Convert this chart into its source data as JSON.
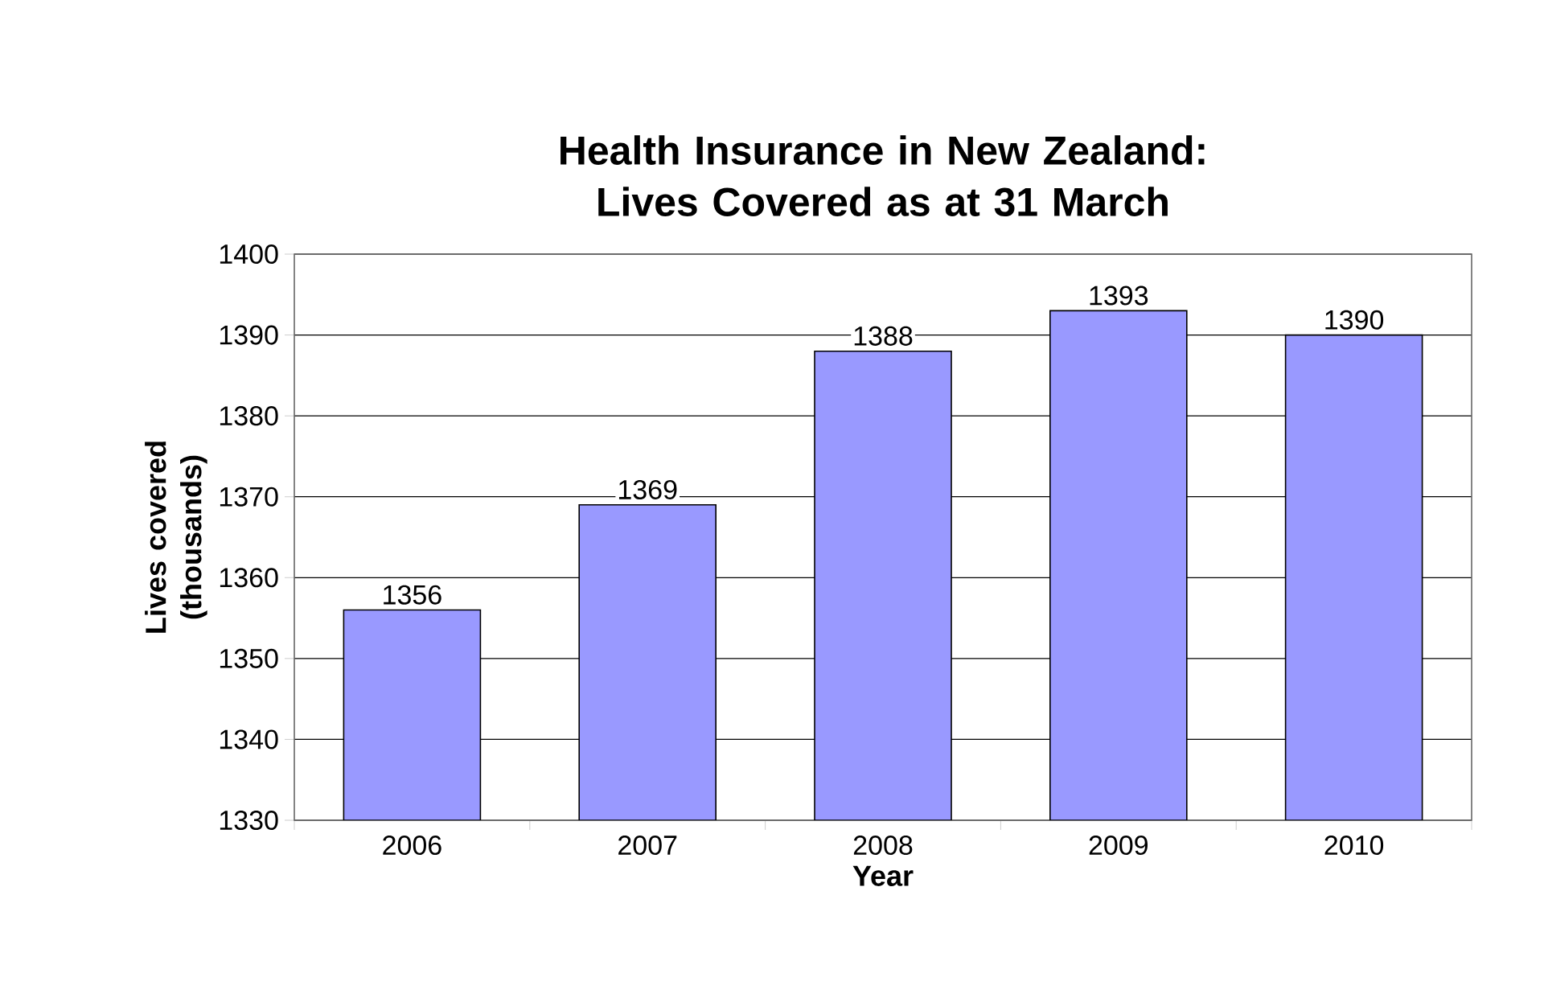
{
  "chart_data": {
    "type": "bar",
    "title": "Health Insurance in New Zealand: Lives Covered as at 31 March",
    "xlabel": "Year",
    "ylabel": "Lives covered (thousands)",
    "categories": [
      "2006",
      "2007",
      "2008",
      "2009",
      "2010"
    ],
    "values": [
      1356,
      1369,
      1388,
      1393,
      1390
    ],
    "color": "#9999ff",
    "ylim": [
      1330,
      1400
    ],
    "yticks": [
      1330,
      1340,
      1350,
      1360,
      1370,
      1380,
      1390,
      1400
    ],
    "grid": "y",
    "data_labels": true
  }
}
